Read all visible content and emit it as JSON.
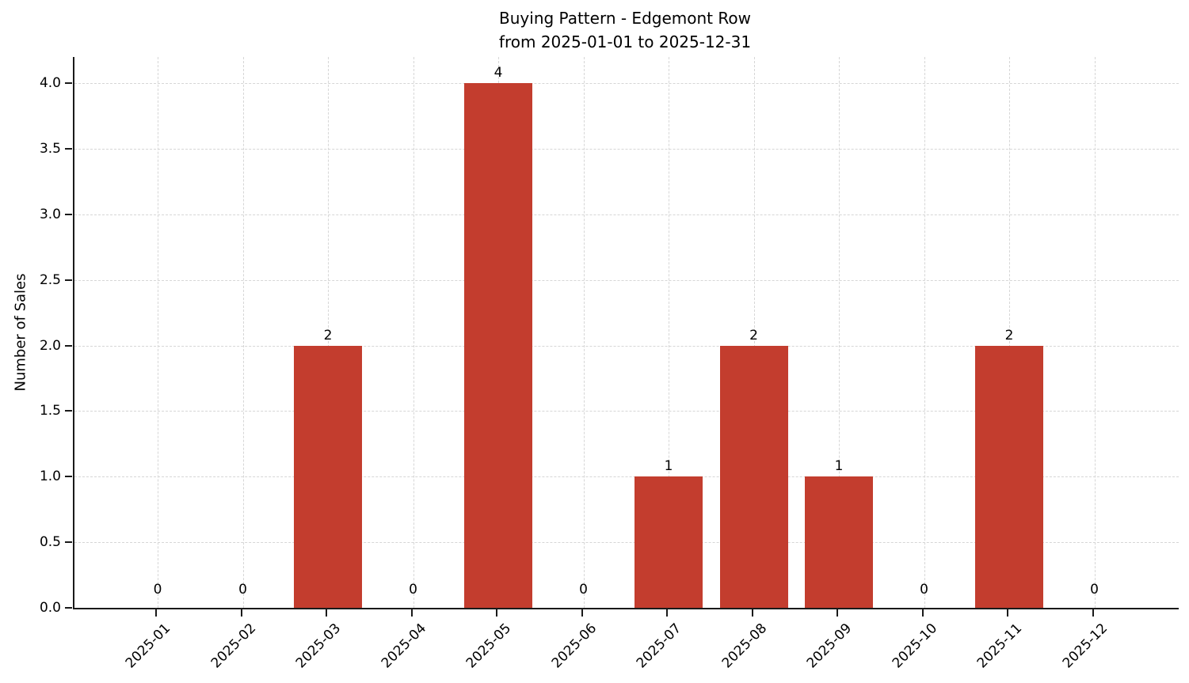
{
  "chart_data": {
    "type": "bar",
    "title": "Buying Pattern - Edgemont Row",
    "subtitle": "from 2025-01-01 to 2025-12-31",
    "xlabel": "",
    "ylabel": "Number of Sales",
    "categories": [
      "2025-01",
      "2025-02",
      "2025-03",
      "2025-04",
      "2025-05",
      "2025-06",
      "2025-07",
      "2025-08",
      "2025-09",
      "2025-10",
      "2025-11",
      "2025-12"
    ],
    "values": [
      0,
      0,
      2,
      0,
      4,
      0,
      1,
      2,
      1,
      0,
      2,
      0
    ],
    "bar_labels": [
      "0",
      "0",
      "2",
      "0",
      "4",
      "0",
      "1",
      "2",
      "1",
      "0",
      "2",
      "0"
    ],
    "ytick_labels": [
      "0.0",
      "0.5",
      "1.0",
      "1.5",
      "2.0",
      "2.5",
      "3.0",
      "3.5",
      "4.0"
    ],
    "yticks": [
      0,
      0.5,
      1,
      1.5,
      2,
      2.5,
      3,
      3.5,
      4
    ],
    "ylim": [
      0,
      4.2
    ],
    "grid": true,
    "legend": "none",
    "bar_color": "#c33d2e",
    "spine_color": "#1a1a1a",
    "gridline_color": "#d6d6d6",
    "text_color": "#000000"
  }
}
